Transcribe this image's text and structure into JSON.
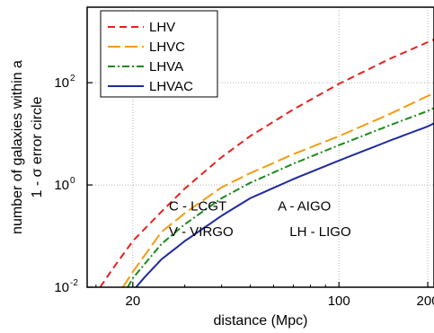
{
  "chart_data": {
    "type": "line",
    "xlabel": "distance (Mpc)",
    "ylabel_lines": [
      "number of galaxies within a",
      "1 - σ error circle"
    ],
    "x_scale": "log",
    "y_scale": "log",
    "xlim": [
      14,
      210
    ],
    "ylim": [
      0.01,
      3000
    ],
    "x_ticks": [
      20,
      100,
      200
    ],
    "x_tick_labels": [
      "20",
      "100",
      "200"
    ],
    "y_ticks": [
      0.01,
      1,
      100
    ],
    "y_tick_labels": [
      {
        "base": "10",
        "exp": "-2"
      },
      {
        "base": "10",
        "exp": "0"
      },
      {
        "base": "10",
        "exp": "2"
      }
    ],
    "grid": true,
    "legend": "top-left",
    "series": [
      {
        "name": "LHV",
        "color": "#e8201e",
        "dash": "8,5",
        "x": [
          15.5,
          17,
          20,
          25,
          30,
          40,
          50,
          70,
          100,
          150,
          200,
          210
        ],
        "y": [
          0.01,
          0.022,
          0.08,
          0.3,
          0.85,
          3.5,
          9.0,
          30,
          95,
          300,
          620,
          700
        ]
      },
      {
        "name": "LHVC",
        "color": "#f39c12",
        "dash": "14,5",
        "x": [
          18.5,
          20,
          25,
          30,
          40,
          50,
          70,
          100,
          150,
          200,
          210
        ],
        "y": [
          0.01,
          0.02,
          0.12,
          0.28,
          0.9,
          1.7,
          4.0,
          9.0,
          25,
          55,
          62
        ]
      },
      {
        "name": "LHVA",
        "color": "#1a8a1a",
        "dash": "8,3,2,3",
        "x": [
          19.2,
          20,
          25,
          30,
          40,
          50,
          70,
          100,
          150,
          200,
          210
        ],
        "y": [
          0.01,
          0.015,
          0.07,
          0.17,
          0.55,
          1.1,
          2.6,
          6.0,
          15,
          28,
          32
        ]
      },
      {
        "name": "LHVAC",
        "color": "#1f2a9c",
        "dash": "",
        "x": [
          20.5,
          22,
          25,
          30,
          40,
          50,
          70,
          100,
          150,
          200,
          210
        ],
        "y": [
          0.01,
          0.016,
          0.035,
          0.08,
          0.25,
          0.55,
          1.3,
          3.0,
          7.5,
          14,
          16
        ]
      }
    ],
    "annotations": [
      {
        "text": "C - LCGT",
        "x": 26.5,
        "y": 0.32
      },
      {
        "text": "A - AIGO",
        "x": 62,
        "y": 0.32
      },
      {
        "text": "V - VIRGO",
        "x": 26.5,
        "y": 0.1
      },
      {
        "text": "LH - LIGO",
        "x": 68,
        "y": 0.1
      }
    ]
  }
}
